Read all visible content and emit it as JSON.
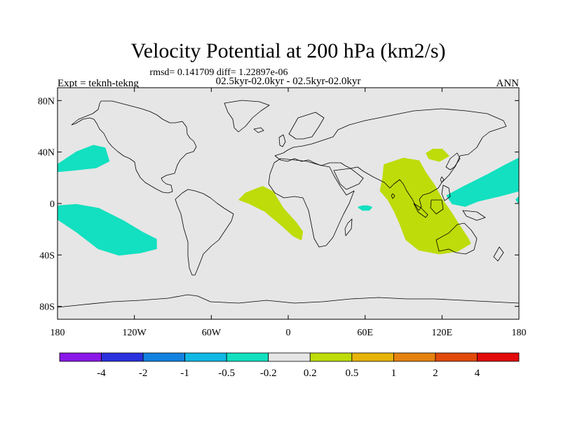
{
  "chart_data": {
    "type": "heatmap",
    "title": "Velocity Potential at 200 hPa (km2/s)",
    "subtitle_stats": "rmsd= 0.141709 diff= 1.22897e-06",
    "subtitle_experiments": "02.5kyr-02.0kyr - 02.5kyr-02.0kyr",
    "left_label": "Expt = teknh-tekng",
    "right_label": "ANN",
    "xaxis": {
      "range": [
        -180,
        180
      ],
      "ticks": [
        {
          "value": -180,
          "label": "180"
        },
        {
          "value": -120,
          "label": "120W"
        },
        {
          "value": -60,
          "label": "60W"
        },
        {
          "value": 0,
          "label": "0"
        },
        {
          "value": 60,
          "label": "60E"
        },
        {
          "value": 120,
          "label": "120E"
        },
        {
          "value": 180,
          "label": "180"
        }
      ]
    },
    "yaxis": {
      "range": [
        -90,
        90
      ],
      "ticks": [
        {
          "value": 80,
          "label": "80N"
        },
        {
          "value": 40,
          "label": "40N"
        },
        {
          "value": 0,
          "label": "0"
        },
        {
          "value": -40,
          "label": "40S"
        },
        {
          "value": -80,
          "label": "80S"
        }
      ]
    },
    "colorbar": {
      "colors": [
        "#8b18e8",
        "#2a32e0",
        "#1282e0",
        "#10b8e4",
        "#12e0c0",
        "#e6e6e6",
        "#bedc0a",
        "#e6b40a",
        "#e68210",
        "#e24a0a",
        "#e20a0a"
      ],
      "labels": [
        "-4",
        "-2",
        "-1",
        "-0.5",
        "-0.2",
        "0.2",
        "0.5",
        "1",
        "2",
        "4"
      ]
    },
    "regions": [
      {
        "level": "-0.5 to -0.2",
        "color": "#12e0c0",
        "polygon": [
          [
            -180,
            30
          ],
          [
            -165,
            40
          ],
          [
            -152,
            45
          ],
          [
            -143,
            43
          ],
          [
            -140,
            33
          ],
          [
            -150,
            28
          ],
          [
            -168,
            26
          ],
          [
            -180,
            25
          ]
        ]
      },
      {
        "level": "-0.5 to -0.2",
        "color": "#12e0c0",
        "polygon": [
          [
            -180,
            -2
          ],
          [
            -165,
            -1
          ],
          [
            -148,
            -4
          ],
          [
            -128,
            -14
          ],
          [
            -113,
            -23
          ],
          [
            -103,
            -28
          ],
          [
            -103,
            -35
          ],
          [
            -115,
            -38
          ],
          [
            -132,
            -40
          ],
          [
            -148,
            -35
          ],
          [
            -165,
            -22
          ],
          [
            -180,
            -12
          ]
        ]
      },
      {
        "level": "-0.5 to -0.2",
        "color": "#12e0c0",
        "polygon": [
          [
            180,
            5
          ],
          [
            180,
            0
          ],
          [
            178,
            3
          ]
        ]
      },
      {
        "level": "-0.5 to -0.2",
        "color": "#12e0c0",
        "polygon": [
          [
            124,
            6
          ],
          [
            135,
            12
          ],
          [
            155,
            22
          ],
          [
            170,
            30
          ],
          [
            180,
            35
          ],
          [
            180,
            10
          ],
          [
            165,
            6
          ],
          [
            148,
            2
          ],
          [
            138,
            -2
          ],
          [
            128,
            0
          ]
        ]
      },
      {
        "level": "-0.5 to -0.2",
        "color": "#12e0c0",
        "polygon": [
          [
            58,
            -2
          ],
          [
            62,
            -2
          ],
          [
            65,
            -3
          ],
          [
            63,
            -5
          ],
          [
            58,
            -5
          ],
          [
            55,
            -3
          ]
        ]
      },
      {
        "level": "0.2 to 0.5",
        "color": "#bedc0a",
        "polygon": [
          [
            -33,
            8
          ],
          [
            -20,
            13
          ],
          [
            -12,
            9
          ],
          [
            -4,
            -4
          ],
          [
            6,
            -15
          ],
          [
            11,
            -22
          ],
          [
            10,
            -28
          ],
          [
            4,
            -25
          ],
          [
            -6,
            -16
          ],
          [
            -18,
            -6
          ],
          [
            -30,
            0
          ],
          [
            -38,
            3
          ]
        ]
      },
      {
        "level": "0.2 to 0.5",
        "color": "#bedc0a",
        "polygon": [
          [
            75,
            30
          ],
          [
            90,
            35
          ],
          [
            102,
            33
          ],
          [
            107,
            24
          ],
          [
            114,
            14
          ],
          [
            120,
            3
          ],
          [
            127,
            -7
          ],
          [
            134,
            -18
          ],
          [
            140,
            -27
          ],
          [
            142,
            -31
          ],
          [
            132,
            -37
          ],
          [
            118,
            -39
          ],
          [
            102,
            -36
          ],
          [
            92,
            -28
          ],
          [
            87,
            -15
          ],
          [
            83,
            -6
          ],
          [
            78,
            3
          ],
          [
            72,
            10
          ],
          [
            74,
            20
          ]
        ]
      },
      {
        "level": "0.2 to 0.5",
        "color": "#bedc0a",
        "polygon": [
          [
            113,
            42
          ],
          [
            120,
            42
          ],
          [
            125,
            37
          ],
          [
            118,
            33
          ],
          [
            110,
            35
          ],
          [
            108,
            39
          ]
        ]
      }
    ]
  }
}
